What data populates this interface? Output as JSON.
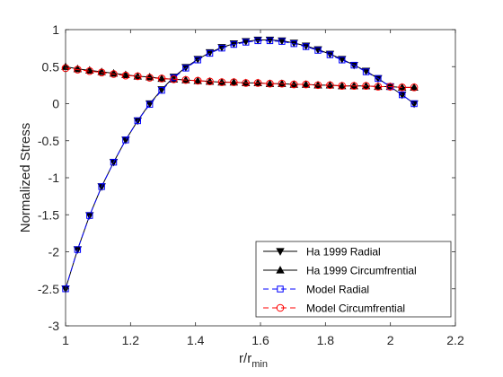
{
  "chart_data": {
    "type": "line",
    "xlabel": "r/r",
    "xlabel_sub": "min",
    "ylabel": "Normalized Stress",
    "xlim": [
      1,
      2.2
    ],
    "ylim": [
      -3,
      1
    ],
    "xticks": [
      1,
      1.2,
      1.4,
      1.6,
      1.8,
      2,
      2.2
    ],
    "xtick_labels": [
      "1",
      "1.2",
      "1.4",
      "1.6",
      "1.8",
      "2",
      "2.2"
    ],
    "yticks": [
      -3,
      -2.5,
      -2,
      -1.5,
      -1,
      -0.5,
      0,
      0.5,
      1
    ],
    "ytick_labels": [
      "-3",
      "-2.5",
      "-2",
      "-1.5",
      "-1",
      "-0.5",
      "0",
      "0.5",
      "1"
    ],
    "grid": false,
    "legend_position": "bottom-right",
    "x": [
      1.0,
      1.037,
      1.074,
      1.111,
      1.148,
      1.185,
      1.222,
      1.259,
      1.296,
      1.333,
      1.37,
      1.407,
      1.444,
      1.481,
      1.518,
      1.555,
      1.592,
      1.629,
      1.666,
      1.703,
      1.74,
      1.777,
      1.814,
      1.851,
      1.888,
      1.925,
      1.962,
      1.999,
      2.036,
      2.073
    ],
    "series": [
      {
        "name": "Ha 1999 Radial",
        "color": "#000000",
        "marker": "triangle-down",
        "line": "solid",
        "values": [
          -2.5,
          -1.97,
          -1.51,
          -1.12,
          -0.79,
          -0.49,
          -0.23,
          0.0,
          0.19,
          0.36,
          0.49,
          0.6,
          0.69,
          0.76,
          0.81,
          0.84,
          0.86,
          0.86,
          0.85,
          0.82,
          0.78,
          0.73,
          0.67,
          0.6,
          0.52,
          0.44,
          0.34,
          0.23,
          0.12,
          0.0
        ]
      },
      {
        "name": "Ha 1999 Circumfrential",
        "color": "#000000",
        "marker": "triangle-up",
        "line": "solid",
        "values": [
          0.5,
          0.47,
          0.45,
          0.43,
          0.41,
          0.39,
          0.37,
          0.36,
          0.34,
          0.33,
          0.32,
          0.31,
          0.3,
          0.29,
          0.29,
          0.28,
          0.28,
          0.27,
          0.27,
          0.26,
          0.26,
          0.25,
          0.25,
          0.24,
          0.24,
          0.24,
          0.23,
          0.23,
          0.22,
          0.22
        ]
      },
      {
        "name": "Model Radial",
        "color": "#0000FF",
        "marker": "square",
        "line": "dashed",
        "values": [
          -2.5,
          -1.97,
          -1.51,
          -1.12,
          -0.79,
          -0.49,
          -0.23,
          -0.01,
          0.18,
          0.35,
          0.48,
          0.59,
          0.68,
          0.75,
          0.8,
          0.83,
          0.85,
          0.85,
          0.84,
          0.81,
          0.77,
          0.72,
          0.66,
          0.59,
          0.52,
          0.43,
          0.34,
          0.23,
          0.12,
          0.0
        ]
      },
      {
        "name": "Model Circumfrential",
        "color": "#FF0000",
        "marker": "circle",
        "line": "dashed",
        "values": [
          0.48,
          0.46,
          0.44,
          0.42,
          0.4,
          0.38,
          0.37,
          0.35,
          0.34,
          0.33,
          0.32,
          0.31,
          0.3,
          0.29,
          0.29,
          0.28,
          0.28,
          0.27,
          0.27,
          0.26,
          0.26,
          0.25,
          0.25,
          0.24,
          0.24,
          0.24,
          0.23,
          0.23,
          0.22,
          0.22
        ]
      }
    ]
  }
}
